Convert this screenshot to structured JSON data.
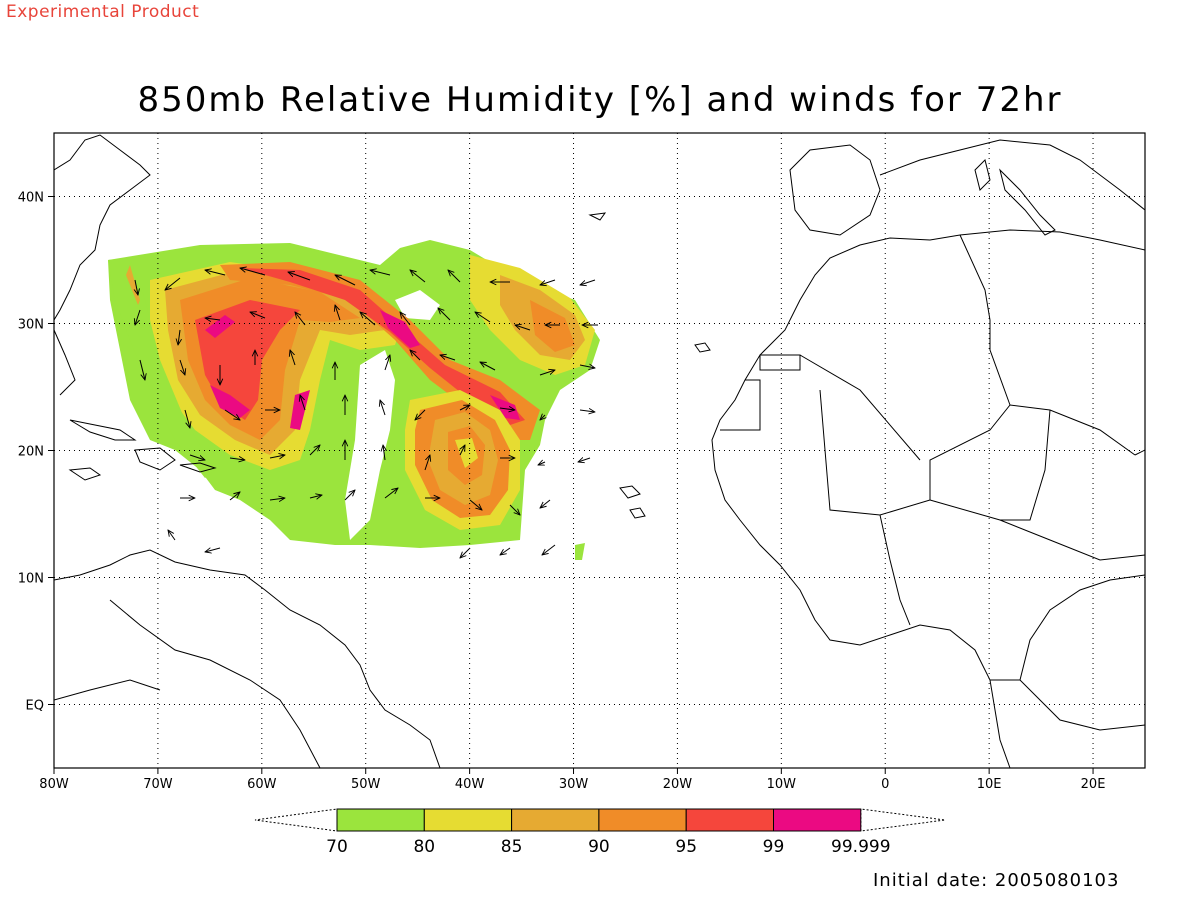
{
  "header": {
    "product_label": "Experimental Product",
    "title": "850mb Relative Humidity [%] and winds for 72hr"
  },
  "map": {
    "lon_range": [
      -80,
      25
    ],
    "lat_range": [
      -5,
      45
    ],
    "x_ticks": [
      {
        "lon": -80,
        "label": "80W"
      },
      {
        "lon": -70,
        "label": "70W"
      },
      {
        "lon": -60,
        "label": "60W"
      },
      {
        "lon": -50,
        "label": "50W"
      },
      {
        "lon": -40,
        "label": "40W"
      },
      {
        "lon": -30,
        "label": "30W"
      },
      {
        "lon": -20,
        "label": "20W"
      },
      {
        "lon": -10,
        "label": "10W"
      },
      {
        "lon": 0,
        "label": "0"
      },
      {
        "lon": 10,
        "label": "10E"
      },
      {
        "lon": 20,
        "label": "20E"
      }
    ],
    "y_ticks": [
      {
        "lat": 40,
        "label": "40N"
      },
      {
        "lat": 30,
        "label": "30N"
      },
      {
        "lat": 20,
        "label": "20N"
      },
      {
        "lat": 10,
        "label": "10N"
      },
      {
        "lat": 0,
        "label": "EQ"
      }
    ],
    "grid": true
  },
  "colorbar": {
    "labels": [
      "70",
      "80",
      "85",
      "90",
      "95",
      "99",
      "99.999"
    ],
    "colors": [
      "#9be43d",
      "#e6dc32",
      "#e6aa32",
      "#f08c28",
      "#f5463c",
      "#eb0a82"
    ]
  },
  "footer": {
    "initial_date": "Initial date: 2005080103"
  }
}
